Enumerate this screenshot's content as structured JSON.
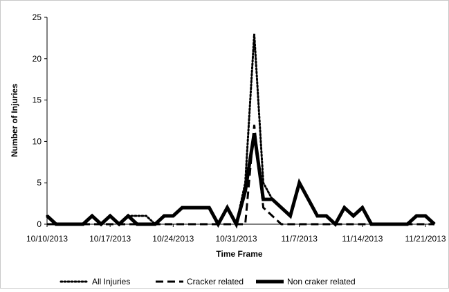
{
  "chart_data": {
    "type": "line",
    "title": "",
    "xlabel": "Time Frame",
    "ylabel": "Number of Injuries",
    "ylim": [
      0,
      25
    ],
    "y_ticks": [
      "0",
      "5",
      "10",
      "15",
      "20",
      "25"
    ],
    "x_start": "10/10/2013",
    "x_end": "11/23/2013",
    "x_ticks": [
      "10/10/2013",
      "10/17/2013",
      "10/24/2013",
      "10/31/2013",
      "11/7/2013",
      "11/14/2013",
      "11/21/2013"
    ],
    "grid": false,
    "legend_position": "bottom",
    "series": [
      {
        "name": "All Injuries",
        "style": "dotted",
        "values": [
          1,
          0,
          0,
          0,
          0,
          1,
          0,
          1,
          0,
          1,
          1,
          1,
          0,
          1,
          1,
          2,
          2,
          2,
          2,
          0,
          2,
          0,
          5,
          23,
          5,
          3,
          2,
          1,
          5,
          3,
          1,
          1,
          0,
          2,
          1,
          2,
          0,
          0,
          0,
          0,
          0,
          1,
          1,
          0
        ]
      },
      {
        "name": "Cracker related",
        "style": "dashed",
        "values": [
          0,
          0,
          0,
          0,
          0,
          0,
          0,
          0,
          0,
          0,
          0,
          0,
          0,
          0,
          0,
          0,
          0,
          0,
          0,
          0,
          0,
          0,
          0,
          12,
          2,
          1,
          0,
          0,
          0,
          0,
          0,
          0,
          0,
          0,
          0,
          0,
          0,
          0,
          0,
          0,
          0,
          0,
          0,
          0
        ]
      },
      {
        "name": "Non craker related",
        "style": "solid",
        "values": [
          1,
          0,
          0,
          0,
          0,
          1,
          0,
          1,
          0,
          1,
          0,
          0,
          0,
          1,
          1,
          2,
          2,
          2,
          2,
          0,
          2,
          0,
          4,
          11,
          3,
          3,
          2,
          1,
          5,
          3,
          1,
          1,
          0,
          2,
          1,
          2,
          0,
          0,
          0,
          0,
          0,
          1,
          1,
          0
        ]
      }
    ]
  }
}
